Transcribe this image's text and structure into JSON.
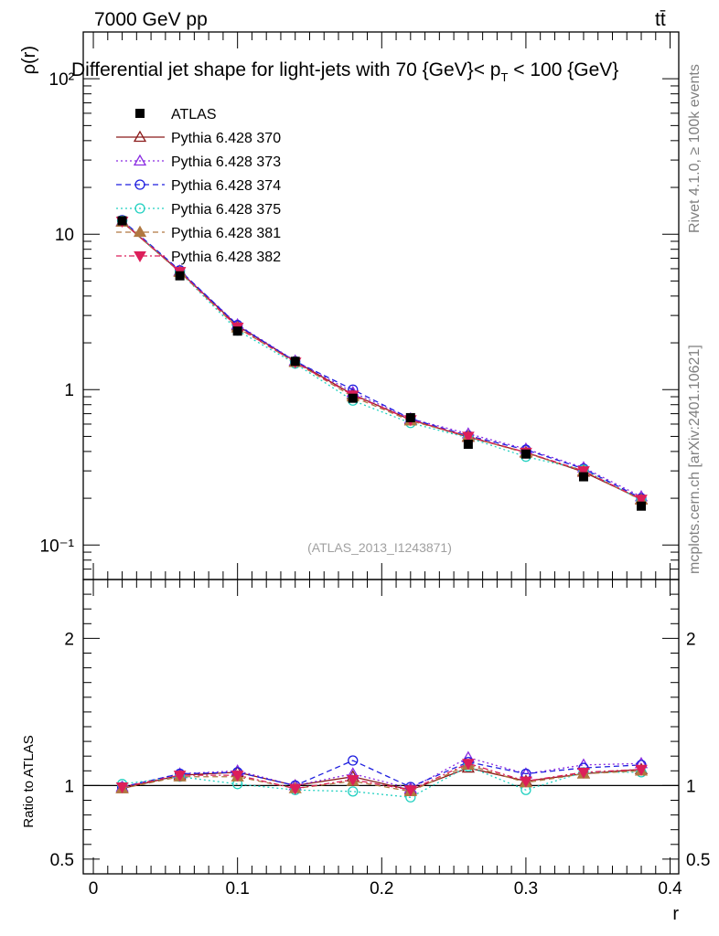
{
  "header": {
    "energy_label": "7000 GeV pp",
    "process_label": "tt̄",
    "title": "Differential jet shape for light-jets with 70 {GeV}< p",
    "title_sub": "T",
    "title_end": " < 100 {GeV}",
    "side_label_top": "Rivet 4.1.0, ≥ 100k events",
    "side_label_bottom": "mcplots.cern.ch [arXiv:2401.10621]",
    "analysis_id": "(ATLAS_2013_I1243871)"
  },
  "axes": {
    "y_label_main": "ρ(r)",
    "y_label_ratio": "Ratio to ATLAS",
    "x_label": "r",
    "y_ticks_main": [
      "10⁻¹",
      "1",
      "10",
      "10²"
    ],
    "y_ticks_ratio": [
      "0.5",
      "1",
      "2"
    ],
    "x_ticks": [
      "0",
      "0.1",
      "0.2",
      "0.3",
      "0.4"
    ]
  },
  "chart_data": {
    "type": "line",
    "title": "Differential jet shape for light-jets with 70 {GeV}< pT < 100 {GeV}",
    "xlabel": "r",
    "ylabel": "ρ(r)",
    "xlim": [
      -0.007,
      0.406
    ],
    "ylim": [
      0.06,
      200
    ],
    "yscale": "log",
    "ratio_ylim": [
      0.4,
      2.4
    ],
    "ratio_ticks": [
      0.5,
      1,
      2
    ],
    "x": [
      0.02,
      0.06,
      0.1,
      0.14,
      0.18,
      0.22,
      0.26,
      0.3,
      0.34,
      0.38
    ],
    "reference": {
      "name": "ATLAS",
      "color": "#000000",
      "values": [
        12.2,
        5.4,
        2.38,
        1.52,
        0.88,
        0.66,
        0.445,
        0.385,
        0.275,
        0.178
      ]
    },
    "series": [
      {
        "name": "Pythia 6.428 370",
        "color": "#8b1a1a",
        "dash": "",
        "marker": "triangle-open",
        "values": [
          12.0,
          5.75,
          2.58,
          1.52,
          0.93,
          0.64,
          0.495,
          0.395,
          0.295,
          0.197
        ],
        "ratio": [
          0.98,
          1.07,
          1.09,
          1.0,
          1.06,
          0.97,
          1.12,
          1.03,
          1.08,
          1.11
        ]
      },
      {
        "name": "Pythia 6.428 373",
        "color": "#8a2be2",
        "dash": "2,3",
        "marker": "triangle-open",
        "values": [
          12.1,
          5.8,
          2.62,
          1.53,
          0.96,
          0.65,
          0.52,
          0.415,
          0.315,
          0.205
        ],
        "ratio": [
          0.99,
          1.08,
          1.1,
          1.0,
          1.08,
          0.98,
          1.19,
          1.08,
          1.14,
          1.15
        ]
      },
      {
        "name": "Pythia 6.428 374",
        "color": "#1f1fdf",
        "dash": "6,4",
        "marker": "circle-open",
        "values": [
          12.3,
          5.85,
          2.6,
          1.52,
          1.0,
          0.65,
          0.505,
          0.41,
          0.31,
          0.2
        ],
        "ratio": [
          0.99,
          1.08,
          1.09,
          1.0,
          1.17,
          0.99,
          1.16,
          1.08,
          1.12,
          1.14
        ]
      },
      {
        "name": "Pythia 6.428 375",
        "color": "#20d0c0",
        "dash": "2,3",
        "marker": "circle-open",
        "values": [
          12.2,
          5.7,
          2.4,
          1.47,
          0.85,
          0.61,
          0.49,
          0.37,
          0.305,
          0.194
        ],
        "ratio": [
          1.01,
          1.06,
          1.01,
          0.97,
          0.96,
          0.92,
          1.13,
          0.97,
          1.09,
          1.09
        ]
      },
      {
        "name": "Pythia 6.428 381",
        "color": "#b07840",
        "dash": "6,4",
        "marker": "triangle-filled",
        "values": [
          12.0,
          5.7,
          2.5,
          1.5,
          0.9,
          0.63,
          0.5,
          0.39,
          0.3,
          0.195
        ],
        "ratio": [
          0.98,
          1.06,
          1.06,
          0.98,
          1.03,
          0.96,
          1.14,
          1.02,
          1.08,
          1.1
        ]
      },
      {
        "name": "Pythia 6.428 382",
        "color": "#dc1f5a",
        "dash": "6,3,2,3",
        "marker": "triangle-down-filled",
        "values": [
          12.1,
          5.75,
          2.52,
          1.5,
          0.92,
          0.64,
          0.5,
          0.395,
          0.3,
          0.197
        ],
        "ratio": [
          0.99,
          1.07,
          1.07,
          0.98,
          1.04,
          0.97,
          1.15,
          1.03,
          1.09,
          1.11
        ]
      }
    ]
  }
}
